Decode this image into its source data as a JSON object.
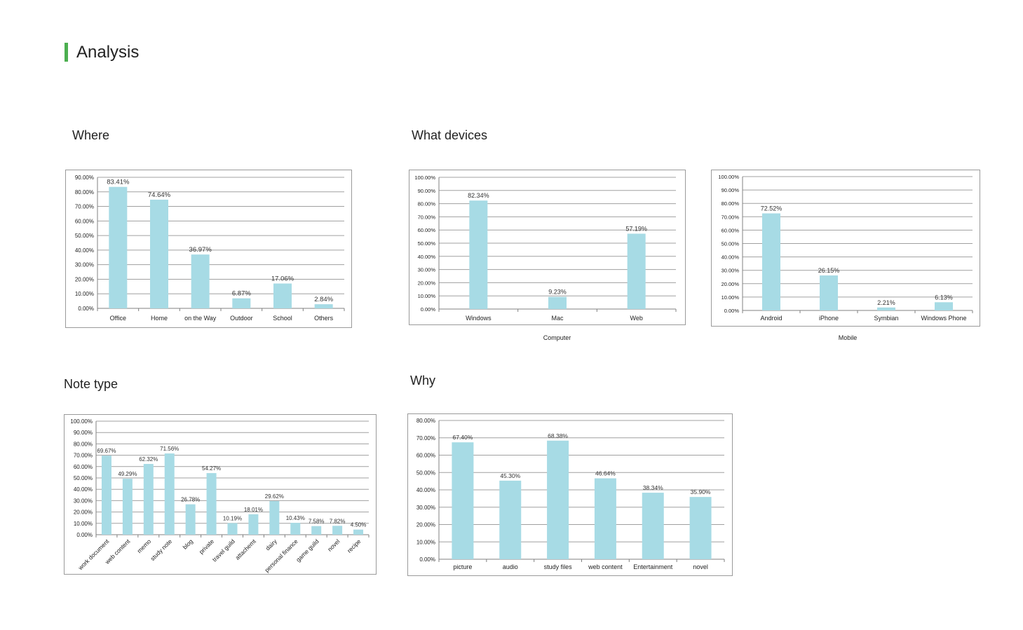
{
  "page": {
    "title": "Analysis"
  },
  "sections": {
    "where": "Where",
    "devices": "What devices",
    "note_type": "Note type",
    "why": "Why"
  },
  "captions": {
    "computer": "Computer",
    "mobile": "Mobile"
  },
  "colors": {
    "bar": "#a7dbe5",
    "grid": "#a0a0a0",
    "accent": "#4caf50"
  },
  "chart_data": [
    {
      "id": "where",
      "type": "bar",
      "categories": [
        "Office",
        "Home",
        "on the Way",
        "Outdoor",
        "School",
        "Others"
      ],
      "values": [
        83.41,
        74.64,
        36.97,
        6.87,
        17.06,
        2.84
      ],
      "data_labels": [
        "83.41%",
        "74.64%",
        "36.97%",
        "6.87%",
        "17.06%",
        "2.84%"
      ],
      "ylim": [
        0,
        90
      ],
      "yticks": [
        "0.00%",
        "10.00%",
        "20.00%",
        "30.00%",
        "40.00%",
        "50.00%",
        "60.00%",
        "70.00%",
        "80.00%",
        "90.00%"
      ],
      "grid": true
    },
    {
      "id": "computer",
      "type": "bar",
      "categories": [
        "Windows",
        "Mac",
        "Web"
      ],
      "values": [
        82.34,
        9.23,
        57.19
      ],
      "data_labels": [
        "82.34%",
        "9.23%",
        "57.19%"
      ],
      "ylim": [
        0,
        100
      ],
      "yticks": [
        "0.00%",
        "10.00%",
        "20.00%",
        "30.00%",
        "40.00%",
        "50.00%",
        "60.00%",
        "70.00%",
        "80.00%",
        "90.00%",
        "100.00%"
      ],
      "grid": true
    },
    {
      "id": "mobile",
      "type": "bar",
      "categories": [
        "Android",
        "iPhone",
        "Symbian",
        "Windows Phone"
      ],
      "values": [
        72.52,
        26.15,
        2.21,
        6.13
      ],
      "data_labels": [
        "72.52%",
        "26.15%",
        "2.21%",
        "6.13%"
      ],
      "ylim": [
        0,
        100
      ],
      "yticks": [
        "0.00%",
        "10.00%",
        "20.00%",
        "30.00%",
        "40.00%",
        "50.00%",
        "60.00%",
        "70.00%",
        "80.00%",
        "90.00%",
        "100.00%"
      ],
      "grid": true
    },
    {
      "id": "note_type",
      "type": "bar",
      "categories": [
        "work document",
        "web content",
        "memo",
        "study note",
        "blog",
        "private",
        "travel guild",
        "attachemt",
        "dairy",
        "personal finance",
        "game guild",
        "novel",
        "recipe"
      ],
      "values": [
        69.67,
        49.29,
        62.32,
        71.56,
        26.78,
        54.27,
        10.19,
        18.01,
        29.62,
        10.43,
        7.58,
        7.82,
        4.5
      ],
      "data_labels": [
        "69.67%",
        "49.29%",
        "62.32%",
        "71.56%",
        "26.78%",
        "54.27%",
        "10.19%",
        "18.01%",
        "29.62%",
        "10.43%",
        "7.58%",
        "7.82%",
        "4.50%"
      ],
      "ylim": [
        0,
        100
      ],
      "yticks": [
        "0.00%",
        "10.00%",
        "20.00%",
        "30.00%",
        "40.00%",
        "50.00%",
        "60.00%",
        "70.00%",
        "80.00%",
        "90.00%",
        "100.00%"
      ],
      "grid": true,
      "rotated_labels": true
    },
    {
      "id": "why",
      "type": "bar",
      "categories": [
        "picture",
        "audio",
        "study files",
        "web content",
        "Entertainment",
        "novel"
      ],
      "values": [
        67.4,
        45.3,
        68.38,
        46.64,
        38.34,
        35.9
      ],
      "data_labels": [
        "67.40%",
        "45.30%",
        "68.38%",
        "46.64%",
        "38.34%",
        "35.90%"
      ],
      "ylim": [
        0,
        80
      ],
      "yticks": [
        "0.00%",
        "10.00%",
        "20.00%",
        "30.00%",
        "40.00%",
        "50.00%",
        "60.00%",
        "70.00%",
        "80.00%"
      ],
      "grid": true
    }
  ]
}
